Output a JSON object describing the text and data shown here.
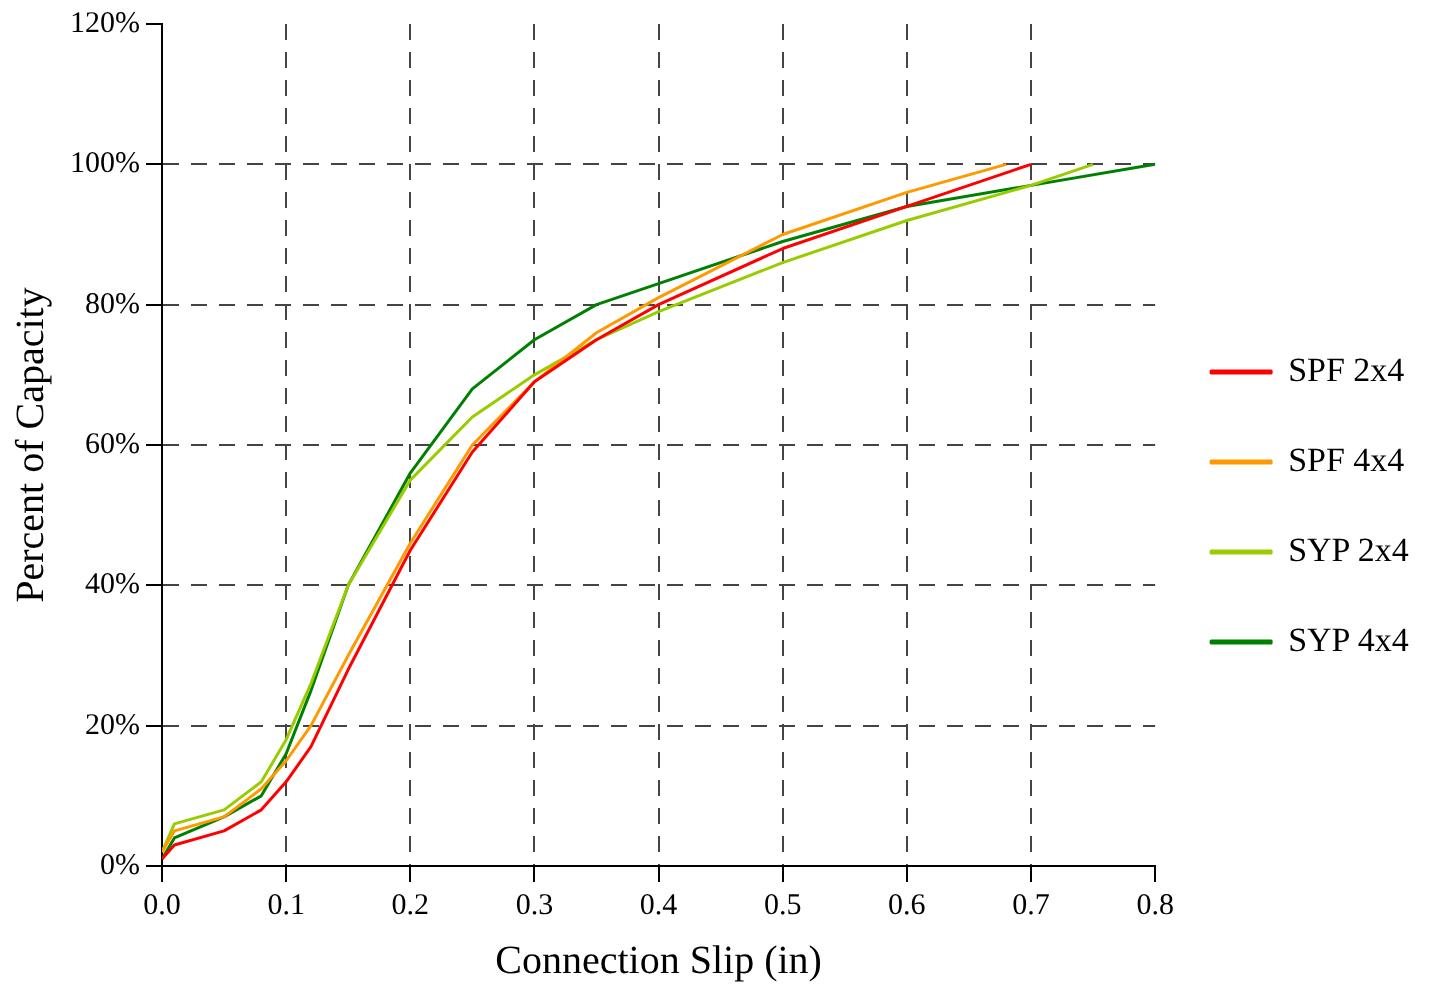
{
  "chart_data": {
    "type": "line",
    "xlabel": "Connection Slip (in)",
    "ylabel": "Percent of Capacity",
    "xlim": [
      0,
      0.8
    ],
    "xticks": [
      {
        "value": 0,
        "label": "0.0"
      },
      0.1,
      0.2,
      0.3,
      0.4,
      0.5,
      0.6,
      0.7,
      0.8
    ],
    "ylim": [
      0,
      120
    ],
    "yticks": [
      {
        "value": 0,
        "label": "0%"
      },
      {
        "value": 20,
        "label": "20%"
      },
      {
        "value": 40,
        "label": "40%"
      },
      {
        "value": 60,
        "label": "60%"
      },
      {
        "value": 80,
        "label": "80%"
      },
      {
        "value": 100,
        "label": "100%"
      },
      {
        "value": 120,
        "label": "120%"
      }
    ],
    "grid": true,
    "legend": "right",
    "marker": "none",
    "line_style": "solid",
    "series": [
      {
        "name": "SPF 2x4",
        "color": "#ff0000",
        "x": [
          0,
          0.01,
          0.05,
          0.08,
          0.1,
          0.12,
          0.15,
          0.2,
          0.25,
          0.3,
          0.35,
          0.4,
          0.5,
          0.6,
          0.7
        ],
        "values": [
          1,
          3,
          5,
          8,
          12,
          17,
          28,
          45,
          59,
          69,
          75,
          80,
          88,
          94,
          100
        ]
      },
      {
        "name": "SPF 4x4",
        "color": "#ff9900",
        "x": [
          0,
          0.01,
          0.05,
          0.08,
          0.1,
          0.12,
          0.15,
          0.2,
          0.25,
          0.3,
          0.35,
          0.4,
          0.5,
          0.6,
          0.68
        ],
        "values": [
          2,
          5,
          7,
          11,
          15,
          20,
          30,
          46,
          60,
          69,
          76,
          81,
          90,
          96,
          100
        ]
      },
      {
        "name": "SYP 2x4",
        "color": "#99cc00",
        "x": [
          0,
          0.01,
          0.05,
          0.08,
          0.1,
          0.12,
          0.15,
          0.2,
          0.25,
          0.3,
          0.35,
          0.4,
          0.5,
          0.6,
          0.7,
          0.75
        ],
        "values": [
          2,
          6,
          8,
          12,
          18,
          26,
          40,
          55,
          64,
          70,
          75,
          79,
          86,
          92,
          97,
          100
        ]
      },
      {
        "name": "SYP 4x4",
        "color": "#008000",
        "x": [
          0,
          0.01,
          0.05,
          0.08,
          0.1,
          0.12,
          0.15,
          0.2,
          0.25,
          0.3,
          0.35,
          0.4,
          0.5,
          0.6,
          0.7,
          0.8
        ],
        "values": [
          1,
          4,
          7,
          10,
          16,
          25,
          40,
          56,
          68,
          75,
          80,
          83,
          89,
          94,
          97,
          100
        ]
      }
    ]
  }
}
